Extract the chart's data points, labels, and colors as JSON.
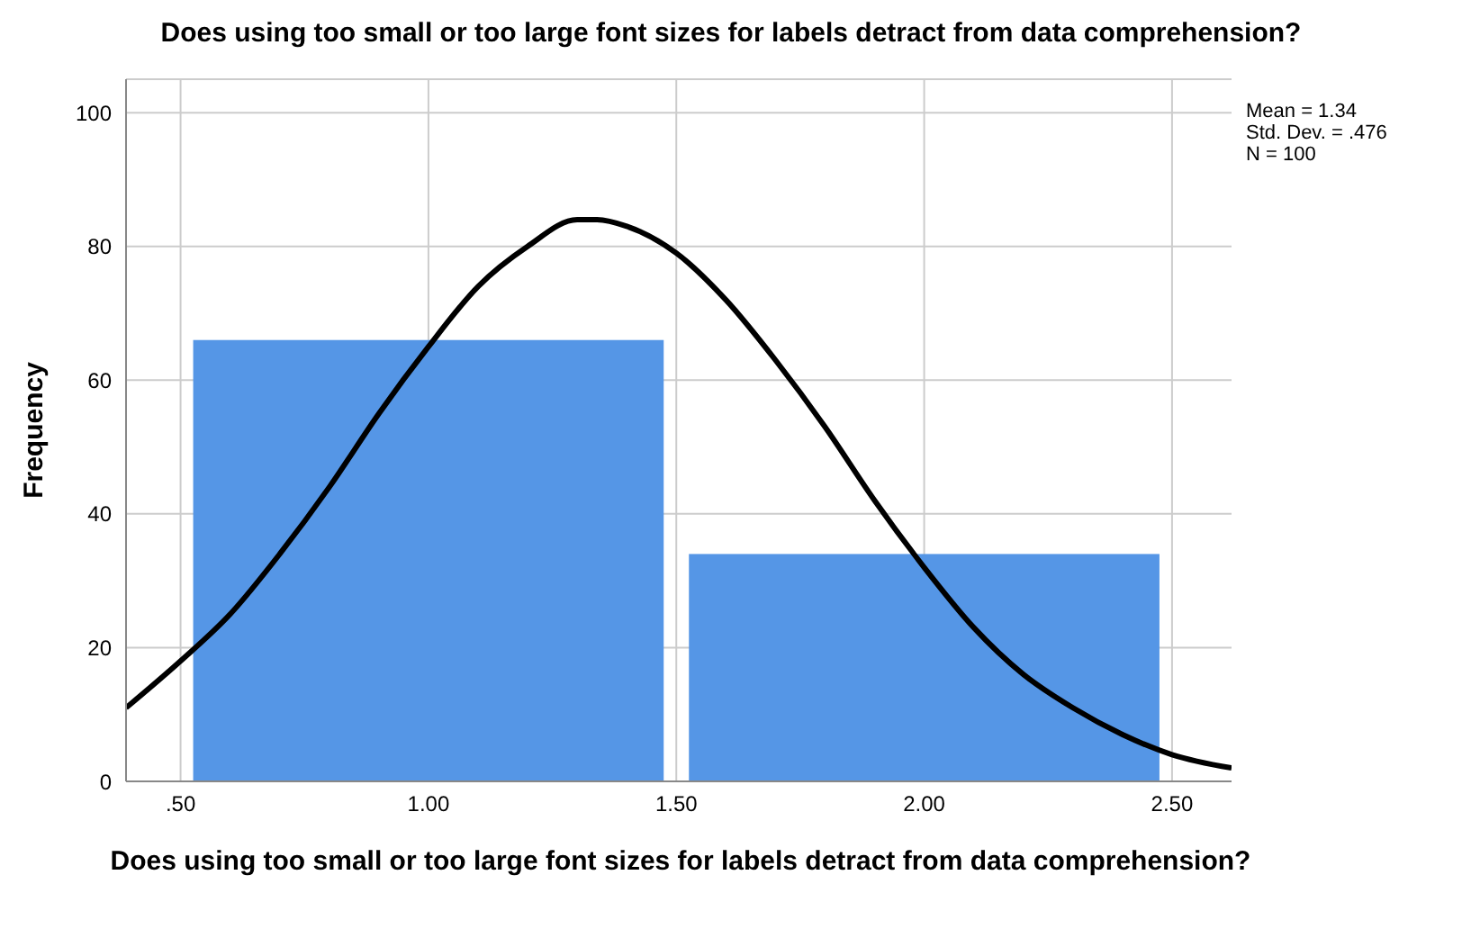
{
  "chart_data": {
    "type": "histogram",
    "title": "Does using too small or too large font sizes for labels detract from data comprehension?",
    "xlabel": "Does using too small or too large font sizes for labels detract from data comprehension?",
    "ylabel": "Frequency",
    "annotations": [
      "Mean = 1.34",
      "Std. Dev. = .476",
      "N = 100"
    ],
    "bins": [
      0.5,
      1.5,
      2.5
    ],
    "values": [
      66,
      34
    ],
    "color": "#5596e6",
    "xlim": [
      0.39,
      2.62
    ],
    "xticks": [
      {
        "value": 0.5,
        "label": ".50"
      },
      {
        "value": 1,
        "label": "1.00"
      },
      {
        "value": 1.5,
        "label": "1.50"
      },
      {
        "value": 2,
        "label": "2.00"
      },
      {
        "value": 2.5,
        "label": "2.50"
      }
    ],
    "ylim": [
      0,
      105
    ],
    "yticks": [
      0,
      20,
      40,
      60,
      80,
      100
    ],
    "grid": true,
    "series": [
      {
        "type": "line",
        "color": "#000000",
        "x": [
          0.39,
          0.5,
          0.6,
          0.7,
          0.8,
          0.9,
          1.0,
          1.1,
          1.2,
          1.3,
          1.34,
          1.4,
          1.5,
          1.6,
          1.7,
          1.8,
          1.9,
          2.0,
          2.1,
          2.2,
          2.3,
          2.4,
          2.5,
          2.62
        ],
        "values": [
          11,
          18,
          25,
          34,
          44,
          55,
          65,
          74,
          80,
          84,
          84,
          83,
          79,
          72,
          63,
          53,
          42,
          32,
          23,
          16,
          11,
          7,
          4,
          2
        ]
      }
    ]
  }
}
